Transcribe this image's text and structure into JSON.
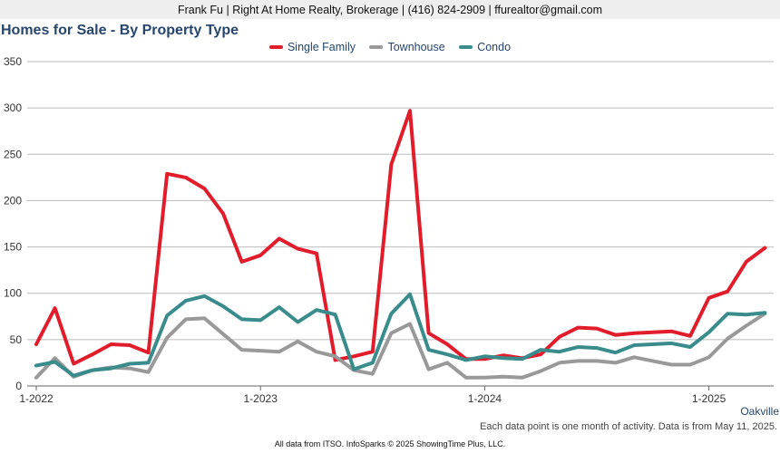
{
  "header": {
    "agent_line": "Frank Fu | Right At Home Realty, Brokerage | (416) 824-2909 | ffurealtor@gmail.com"
  },
  "chart_data": {
    "type": "line",
    "title": "Homes for Sale - By Property Type",
    "x_tick_labels": [
      "1-2022",
      "1-2023",
      "1-2024",
      "1-2025"
    ],
    "x_tick_month_index": [
      0,
      12,
      24,
      36
    ],
    "x_start": "2022-01",
    "x_end": "2025-04",
    "ylim": [
      0,
      350
    ],
    "y_ticks": [
      0,
      50,
      100,
      150,
      200,
      250,
      300,
      350
    ],
    "grid": true,
    "legend_position": "top",
    "series": [
      {
        "name": "Single Family",
        "color": "#e11d2b",
        "values": [
          45,
          84,
          24,
          34,
          45,
          44,
          36,
          229,
          225,
          213,
          186,
          134,
          141,
          159,
          148,
          143,
          28,
          32,
          37,
          239,
          297,
          57,
          45,
          29,
          29,
          33,
          30,
          34,
          53,
          63,
          62,
          55,
          57,
          58,
          59,
          54,
          95,
          102,
          134,
          149
        ]
      },
      {
        "name": "Townhouse",
        "color": "#999999",
        "values": [
          9,
          30,
          10,
          17,
          20,
          19,
          15,
          52,
          72,
          73,
          56,
          39,
          38,
          37,
          48,
          37,
          32,
          17,
          13,
          57,
          67,
          18,
          25,
          9,
          9,
          10,
          9,
          16,
          25,
          27,
          27,
          25,
          31,
          27,
          23,
          23,
          31,
          51,
          65,
          78
        ]
      },
      {
        "name": "Condo",
        "color": "#3a8c8c",
        "values": [
          22,
          26,
          11,
          17,
          19,
          24,
          25,
          76,
          92,
          97,
          86,
          72,
          71,
          85,
          69,
          82,
          77,
          18,
          25,
          78,
          99,
          39,
          34,
          28,
          32,
          30,
          29,
          39,
          37,
          42,
          41,
          36,
          44,
          45,
          46,
          42,
          58,
          78,
          77,
          79
        ]
      }
    ]
  },
  "footer": {
    "region": "Oakville",
    "note": "Each data point is one month of activity. Data is from May 11, 2025.",
    "source": "All data from ITSO. InfoSparks © 2025 ShowingTime Plus, LLC."
  }
}
